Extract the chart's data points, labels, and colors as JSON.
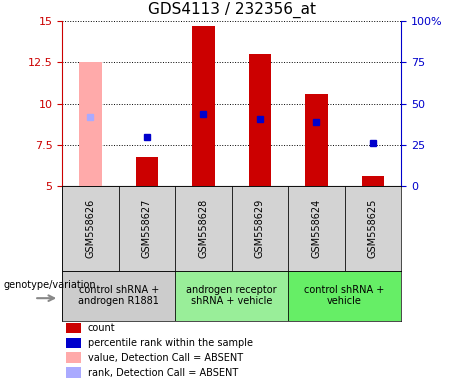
{
  "title": "GDS4113 / 232356_at",
  "samples": [
    "GSM558626",
    "GSM558627",
    "GSM558628",
    "GSM558629",
    "GSM558624",
    "GSM558625"
  ],
  "bar_values": [
    12.5,
    6.8,
    14.7,
    13.0,
    10.6,
    5.6
  ],
  "bar_absent": [
    true,
    false,
    false,
    false,
    false,
    false
  ],
  "dot_values": [
    9.2,
    8.0,
    9.4,
    9.1,
    8.9,
    7.6
  ],
  "dot_absent": [
    true,
    false,
    false,
    false,
    false,
    false
  ],
  "ylim_left": [
    5,
    15
  ],
  "ylim_right": [
    0,
    100
  ],
  "yticks_left": [
    5,
    7.5,
    10,
    12.5,
    15
  ],
  "yticks_right": [
    0,
    25,
    50,
    75,
    100
  ],
  "ytick_labels_left": [
    "5",
    "7.5",
    "10",
    "12.5",
    "15"
  ],
  "ytick_labels_right": [
    "0",
    "25",
    "50",
    "75",
    "100%"
  ],
  "left_axis_color": "#cc0000",
  "right_axis_color": "#0000cc",
  "bar_color_present": "#cc0000",
  "bar_color_absent": "#ffaaaa",
  "dot_color_present": "#0000cc",
  "dot_color_absent": "#aaaaff",
  "groups": [
    {
      "label": "control shRNA +\nandrogen R1881",
      "indices": [
        0,
        1
      ],
      "color": "#cccccc"
    },
    {
      "label": "androgen receptor\nshRNA + vehicle",
      "indices": [
        2,
        3
      ],
      "color": "#99ee99"
    },
    {
      "label": "control shRNA +\nvehicle",
      "indices": [
        4,
        5
      ],
      "color": "#66ee66"
    }
  ],
  "legend_items": [
    {
      "label": "count",
      "color": "#cc0000"
    },
    {
      "label": "percentile rank within the sample",
      "color": "#0000cc"
    },
    {
      "label": "value, Detection Call = ABSENT",
      "color": "#ffaaaa"
    },
    {
      "label": "rank, Detection Call = ABSENT",
      "color": "#aaaaff"
    }
  ],
  "genotype_label": "genotype/variation",
  "bar_width": 0.4,
  "title_fontsize": 11,
  "tick_label_fontsize": 8,
  "sample_label_fontsize": 7,
  "group_label_fontsize": 7,
  "legend_fontsize": 7,
  "geno_fontsize": 7
}
